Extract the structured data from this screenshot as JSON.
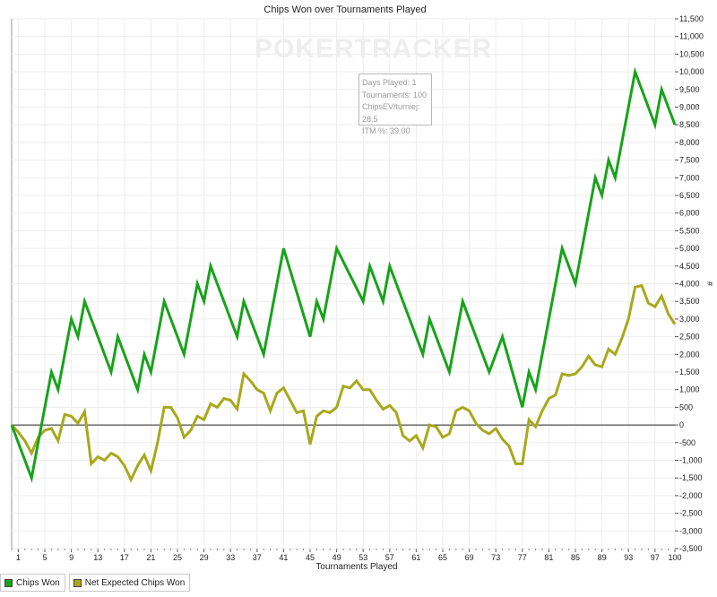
{
  "chart_data": {
    "type": "line",
    "title": "Chips Won over Tournaments Played",
    "xlabel": "Tournaments Played",
    "ylabel": "#",
    "xlim": [
      0,
      100
    ],
    "ylim": [
      -3500,
      11500
    ],
    "x_ticks": [
      1,
      5,
      9,
      13,
      17,
      21,
      25,
      29,
      33,
      37,
      41,
      45,
      49,
      53,
      57,
      61,
      65,
      69,
      73,
      77,
      81,
      85,
      89,
      93,
      97,
      100
    ],
    "y_ticks": [
      -3500,
      -3000,
      -2500,
      -2000,
      -1500,
      -1000,
      -500,
      0,
      500,
      1000,
      1500,
      2000,
      2500,
      3000,
      3500,
      4000,
      4500,
      5000,
      5500,
      6000,
      6500,
      7000,
      7500,
      8000,
      8500,
      9000,
      9500,
      10000,
      10500,
      11000,
      11500
    ],
    "y_tick_labels": [
      "-3,500",
      "-3,000",
      "-2,500",
      "-2,000",
      "-1,500",
      "-1,000",
      "-500",
      "0",
      "500",
      "1,000",
      "1,500",
      "2,000",
      "2,500",
      "3,000",
      "3,500",
      "4,000",
      "4,500",
      "5,000",
      "5,500",
      "6,000",
      "6,500",
      "7,000",
      "7,500",
      "8,000",
      "8,500",
      "9,000",
      "9,500",
      "10,000",
      "10,500",
      "11,000",
      "11,500"
    ],
    "grid": true,
    "legend_position": "bottom-left",
    "series": [
      {
        "name": "Chips Won",
        "color": "#17a31a",
        "points": [
          [
            0,
            0
          ],
          [
            3,
            -1500
          ],
          [
            6,
            1500
          ],
          [
            7,
            1000
          ],
          [
            9,
            3000
          ],
          [
            10,
            2500
          ],
          [
            11,
            3500
          ],
          [
            15,
            1500
          ],
          [
            16,
            2500
          ],
          [
            19,
            1000
          ],
          [
            20,
            2000
          ],
          [
            21,
            1500
          ],
          [
            23,
            3500
          ],
          [
            26,
            2000
          ],
          [
            28,
            4000
          ],
          [
            29,
            3500
          ],
          [
            30,
            4500
          ],
          [
            34,
            2500
          ],
          [
            35,
            3500
          ],
          [
            38,
            2000
          ],
          [
            41,
            5000
          ],
          [
            45,
            2500
          ],
          [
            46,
            3500
          ],
          [
            47,
            3000
          ],
          [
            49,
            5000
          ],
          [
            53,
            3500
          ],
          [
            54,
            4500
          ],
          [
            56,
            3500
          ],
          [
            57,
            4500
          ],
          [
            62,
            2000
          ],
          [
            63,
            3000
          ],
          [
            66,
            1500
          ],
          [
            68,
            3500
          ],
          [
            72,
            1500
          ],
          [
            74,
            2500
          ],
          [
            77,
            500
          ],
          [
            78,
            1500
          ],
          [
            79,
            1000
          ],
          [
            83,
            5000
          ],
          [
            85,
            4000
          ],
          [
            88,
            7000
          ],
          [
            89,
            6500
          ],
          [
            90,
            7500
          ],
          [
            91,
            7000
          ],
          [
            94,
            10000
          ],
          [
            97,
            8500
          ],
          [
            98,
            9500
          ],
          [
            100,
            8500
          ]
        ]
      },
      {
        "name": "Net Expected Chips Won",
        "color": "#a8a81c",
        "points": [
          [
            0,
            0
          ],
          [
            1,
            -200
          ],
          [
            2,
            -450
          ],
          [
            3,
            -800
          ],
          [
            4,
            -350
          ],
          [
            5,
            -150
          ],
          [
            6,
            -100
          ],
          [
            7,
            -450
          ],
          [
            8,
            300
          ],
          [
            9,
            250
          ],
          [
            10,
            50
          ],
          [
            11,
            380
          ],
          [
            12,
            -1100
          ],
          [
            13,
            -900
          ],
          [
            14,
            -1000
          ],
          [
            15,
            -800
          ],
          [
            16,
            -900
          ],
          [
            17,
            -1150
          ],
          [
            18,
            -1550
          ],
          [
            19,
            -1150
          ],
          [
            20,
            -850
          ],
          [
            21,
            -1300
          ],
          [
            22,
            -500
          ],
          [
            23,
            500
          ],
          [
            24,
            500
          ],
          [
            25,
            200
          ],
          [
            26,
            -350
          ],
          [
            27,
            -150
          ],
          [
            28,
            250
          ],
          [
            29,
            150
          ],
          [
            30,
            600
          ],
          [
            31,
            500
          ],
          [
            32,
            750
          ],
          [
            33,
            700
          ],
          [
            34,
            450
          ],
          [
            35,
            1450
          ],
          [
            36,
            1250
          ],
          [
            37,
            1000
          ],
          [
            38,
            900
          ],
          [
            39,
            400
          ],
          [
            40,
            900
          ],
          [
            41,
            1050
          ],
          [
            42,
            700
          ],
          [
            43,
            350
          ],
          [
            44,
            400
          ],
          [
            45,
            -550
          ],
          [
            46,
            250
          ],
          [
            47,
            400
          ],
          [
            48,
            350
          ],
          [
            49,
            500
          ],
          [
            50,
            1100
          ],
          [
            51,
            1050
          ],
          [
            52,
            1250
          ],
          [
            53,
            1000
          ],
          [
            54,
            1000
          ],
          [
            55,
            700
          ],
          [
            56,
            450
          ],
          [
            57,
            550
          ],
          [
            58,
            350
          ],
          [
            59,
            -300
          ],
          [
            60,
            -450
          ],
          [
            61,
            -300
          ],
          [
            62,
            -650
          ],
          [
            63,
            0
          ],
          [
            64,
            -50
          ],
          [
            65,
            -350
          ],
          [
            66,
            -250
          ],
          [
            67,
            400
          ],
          [
            68,
            500
          ],
          [
            69,
            400
          ],
          [
            70,
            50
          ],
          [
            71,
            -150
          ],
          [
            72,
            -250
          ],
          [
            73,
            -100
          ],
          [
            74,
            -400
          ],
          [
            75,
            -600
          ],
          [
            76,
            -1100
          ],
          [
            77,
            -1100
          ],
          [
            78,
            150
          ],
          [
            79,
            -50
          ],
          [
            80,
            400
          ],
          [
            81,
            750
          ],
          [
            82,
            850
          ],
          [
            83,
            1450
          ],
          [
            84,
            1400
          ],
          [
            85,
            1450
          ],
          [
            86,
            1650
          ],
          [
            87,
            1950
          ],
          [
            88,
            1700
          ],
          [
            89,
            1650
          ],
          [
            90,
            2150
          ],
          [
            91,
            2000
          ],
          [
            92,
            2450
          ],
          [
            93,
            3000
          ],
          [
            94,
            3900
          ],
          [
            95,
            3950
          ],
          [
            96,
            3450
          ],
          [
            97,
            3350
          ],
          [
            98,
            3650
          ],
          [
            99,
            3150
          ],
          [
            100,
            2850
          ]
        ]
      }
    ]
  },
  "watermark": "POKERTRACKER",
  "info_box": {
    "line1": "Days Played: 1",
    "line2": "Tournaments: 100",
    "line3": "ChipsEV/turniej: 28.5",
    "line4": "ITM %: 39.00"
  },
  "legend": {
    "item1": "Chips Won",
    "item2": "Net Expected Chips Won"
  }
}
